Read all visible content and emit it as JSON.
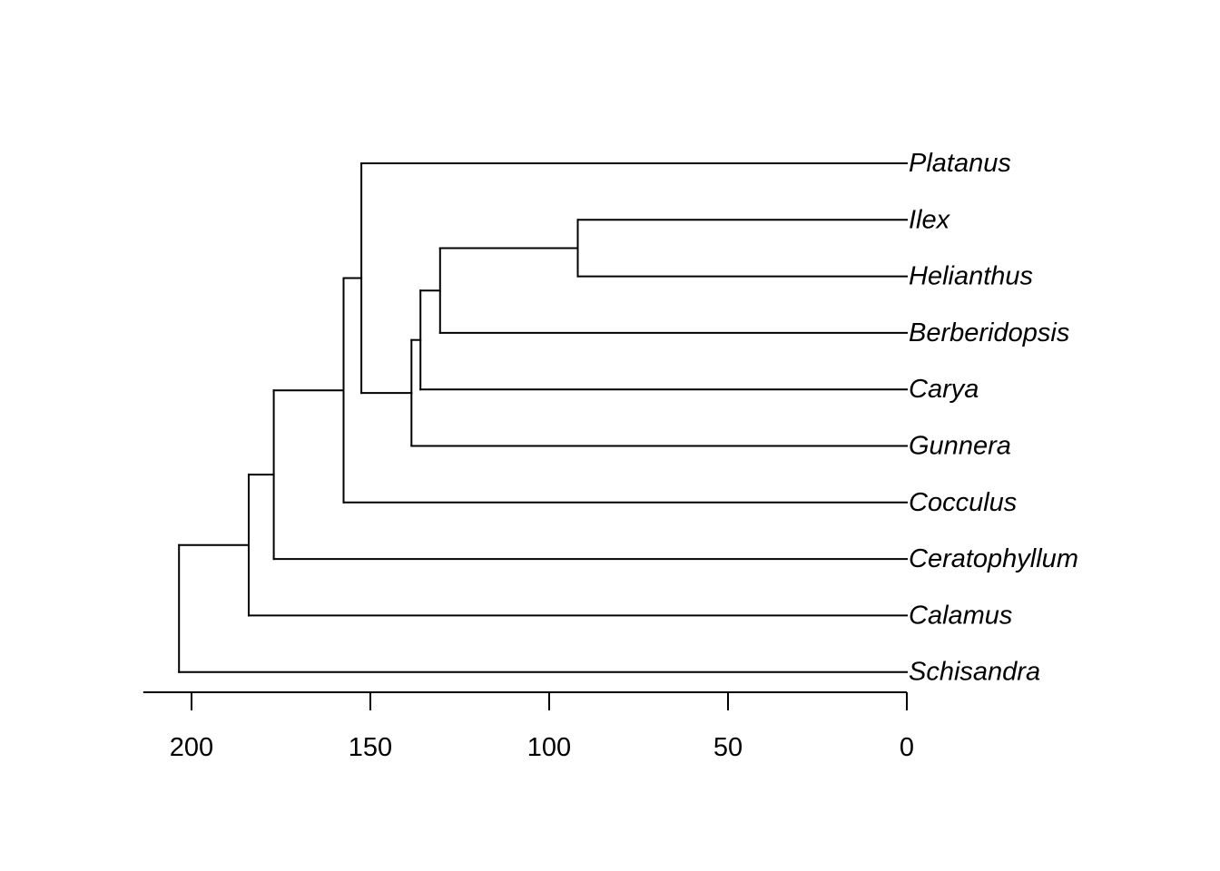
{
  "chart_data": {
    "type": "dendrogram",
    "tree": {
      "age": 203.5,
      "children": [
        {
          "age": 184,
          "children": [
            {
              "age": 177,
              "children": [
                {
                  "age": 157.5,
                  "children": [
                    {
                      "age": 152.5,
                      "children": [
                        {
                          "name": "Platanus",
                          "age": 0
                        },
                        {
                          "age": 138.5,
                          "children": [
                            {
                              "age": 136,
                              "children": [
                                {
                                  "age": 130.5,
                                  "children": [
                                    {
                                      "age": 92,
                                      "children": [
                                        {
                                          "name": "Ilex",
                                          "age": 0
                                        },
                                        {
                                          "name": "Helianthus",
                                          "age": 0
                                        }
                                      ]
                                    },
                                    {
                                      "name": "Berberidopsis",
                                      "age": 0
                                    }
                                  ]
                                },
                                {
                                  "name": "Carya",
                                  "age": 0
                                }
                              ]
                            },
                            {
                              "name": "Gunnera",
                              "age": 0
                            }
                          ]
                        }
                      ]
                    },
                    {
                      "name": "Cocculus",
                      "age": 0
                    }
                  ]
                },
                {
                  "name": "Ceratophyllum",
                  "age": 0
                }
              ]
            },
            {
              "name": "Calamus",
              "age": 0
            }
          ]
        },
        {
          "name": "Schisandra",
          "age": 0
        }
      ]
    },
    "tips": [
      "Platanus",
      "Ilex",
      "Helianthus",
      "Berberidopsis",
      "Carya",
      "Gunnera",
      "Cocculus",
      "Ceratophyllum",
      "Calamus",
      "Schisandra"
    ],
    "axis": {
      "ticks": [
        200,
        150,
        100,
        50,
        0
      ],
      "tick_labels": [
        "200",
        "150",
        "100",
        "50",
        "0"
      ],
      "range": [
        213.5,
        0
      ],
      "reversed": true
    },
    "grid": false,
    "legend": "none"
  }
}
